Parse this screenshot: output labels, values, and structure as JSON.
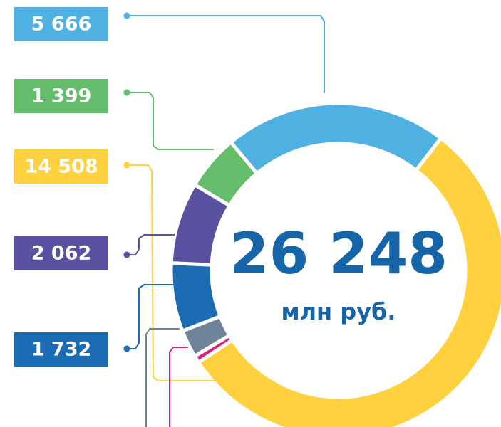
{
  "chart_data": {
    "type": "donut",
    "values": [
      5666,
      14508,
      181,
      700,
      1732,
      2062,
      1399
    ],
    "value_labels": [
      "5 666",
      "14 508",
      null,
      null,
      "1 732",
      "2 062",
      "1 399"
    ],
    "colors": [
      "#4fb0e2",
      "#ffd13f",
      "#d6247e",
      "#6f8399",
      "#1b6cb3",
      "#5a52a0",
      "#63bd6b"
    ],
    "center_label": "26 248",
    "center_sublabel": "млн руб."
  }
}
